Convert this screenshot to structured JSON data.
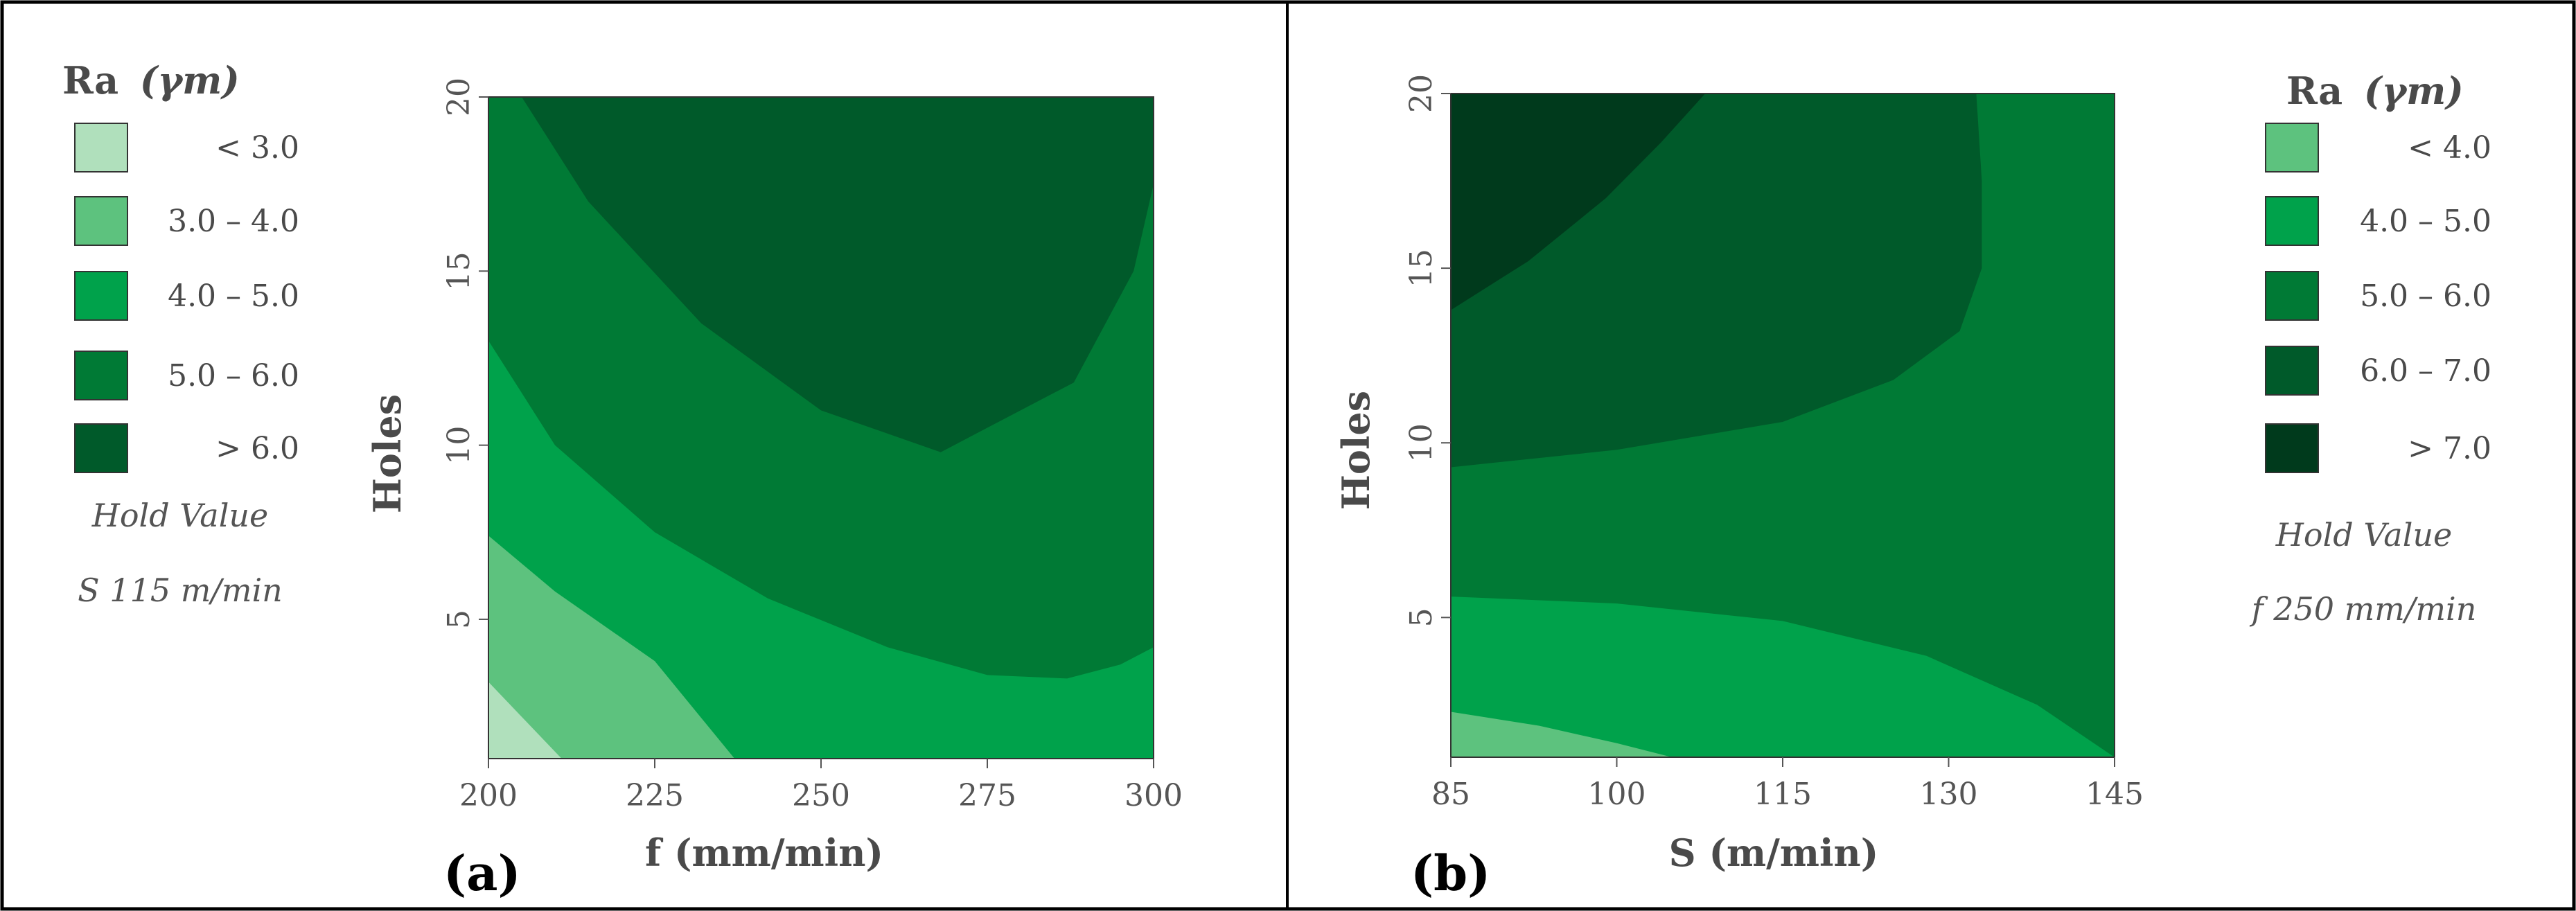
{
  "chart_data": [
    {
      "type": "contour",
      "panel_label": "(a)",
      "panel_letter": "a",
      "xlabel": "f (mm/min)",
      "ylabel": "Holes",
      "xlim": [
        200,
        300
      ],
      "ylim": [
        1,
        20
      ],
      "x_ticks": [
        200,
        225,
        250,
        275,
        300
      ],
      "y_ticks": [
        5,
        10,
        15,
        20
      ],
      "legend": {
        "title": "Ra",
        "title_unit": "(γm)",
        "entries": [
          {
            "label": "< 3.0",
            "color": "#b0e0bc"
          },
          {
            "label": "3.0 – 4.0",
            "color": "#5dc27e"
          },
          {
            "label": "4.0 – 5.0",
            "color": "#00a24b"
          },
          {
            "label": "5.0 – 6.0",
            "color": "#007a35"
          },
          {
            "label": "> 6.0",
            "color": "#005a2a"
          }
        ]
      },
      "hold_value_label": "Hold Value",
      "hold_value": "S 115 m/min",
      "regions": [
        {
          "level": "5.0 – 6.0",
          "color": "#007a35",
          "points": [
            [
              200,
              1
            ],
            [
              300,
              1
            ],
            [
              300,
              20
            ],
            [
              200,
              20
            ]
          ]
        },
        {
          "level": "> 6.0",
          "color": "#005a2a",
          "points": [
            [
              205,
              20
            ],
            [
              215,
              17
            ],
            [
              232,
              13.5
            ],
            [
              250,
              11
            ],
            [
              268,
              9.8
            ],
            [
              288,
              11.8
            ],
            [
              297,
              15
            ],
            [
              300,
              17.5
            ],
            [
              300,
              20
            ]
          ]
        },
        {
          "level": "4.0 – 5.0",
          "color": "#00a24b",
          "points": [
            [
              200,
              13
            ],
            [
              210,
              10
            ],
            [
              225,
              7.5
            ],
            [
              242,
              5.6
            ],
            [
              260,
              4.2
            ],
            [
              275,
              3.4
            ],
            [
              287,
              3.3
            ],
            [
              295,
              3.7
            ],
            [
              300,
              4.2
            ],
            [
              300,
              1
            ],
            [
              200,
              1
            ]
          ]
        },
        {
          "level": "3.0 – 4.0",
          "color": "#5dc27e",
          "points": [
            [
              200,
              7.4
            ],
            [
              210,
              5.8
            ],
            [
              225,
              3.8
            ],
            [
              237,
              1
            ],
            [
              200,
              1
            ]
          ]
        },
        {
          "level": "< 3.0",
          "color": "#b0e0bc",
          "points": [
            [
              200,
              3.2
            ],
            [
              205,
              2.2
            ],
            [
              211,
              1
            ],
            [
              200,
              1
            ]
          ]
        }
      ]
    },
    {
      "type": "contour",
      "panel_label": "(b)",
      "panel_letter": "b",
      "xlabel": "S (m/min)",
      "ylabel": "Holes",
      "xlim": [
        85,
        145
      ],
      "ylim": [
        1,
        20
      ],
      "x_ticks": [
        85,
        100,
        115,
        130,
        145
      ],
      "y_ticks": [
        5,
        10,
        15,
        20
      ],
      "legend": {
        "title": "Ra",
        "title_unit": "(γm)",
        "entries": [
          {
            "label": "< 4.0",
            "color": "#5dc27e"
          },
          {
            "label": "4.0 – 5.0",
            "color": "#00a24b"
          },
          {
            "label": "5.0 – 6.0",
            "color": "#007a35"
          },
          {
            "label": "6.0 – 7.0",
            "color": "#005a2a"
          },
          {
            "label": "> 7.0",
            "color": "#003a1c"
          }
        ]
      },
      "hold_value_label": "Hold Value",
      "hold_value": "f 250 mm/min",
      "regions": [
        {
          "level": "5.0 – 6.0",
          "color": "#007a35",
          "points": [
            [
              85,
              1
            ],
            [
              145,
              1
            ],
            [
              145,
              20
            ],
            [
              85,
              20
            ]
          ]
        },
        {
          "level": "6.0 – 7.0",
          "color": "#005a2a",
          "points": [
            [
              85,
              9.3
            ],
            [
              100,
              9.8
            ],
            [
              115,
              10.6
            ],
            [
              125,
              11.8
            ],
            [
              131,
              13.2
            ],
            [
              133,
              15
            ],
            [
              133,
              17.5
            ],
            [
              132.5,
              20
            ],
            [
              85,
              20
            ]
          ]
        },
        {
          "level": "> 7.0",
          "color": "#003a1c",
          "points": [
            [
              85,
              13.8
            ],
            [
              92,
              15.2
            ],
            [
              99,
              17
            ],
            [
              104,
              18.6
            ],
            [
              108,
              20
            ],
            [
              85,
              20
            ]
          ]
        },
        {
          "level": "4.0 – 5.0",
          "color": "#00a24b",
          "points": [
            [
              85,
              5.6
            ],
            [
              100,
              5.4
            ],
            [
              115,
              4.9
            ],
            [
              128,
              3.9
            ],
            [
              138,
              2.5
            ],
            [
              145,
              1
            ],
            [
              85,
              1
            ]
          ]
        },
        {
          "level": "< 4.0",
          "color": "#5dc27e",
          "points": [
            [
              85,
              2.3
            ],
            [
              93,
              1.9
            ],
            [
              100,
              1.4
            ],
            [
              105,
              1
            ],
            [
              85,
              1
            ]
          ]
        }
      ]
    }
  ]
}
